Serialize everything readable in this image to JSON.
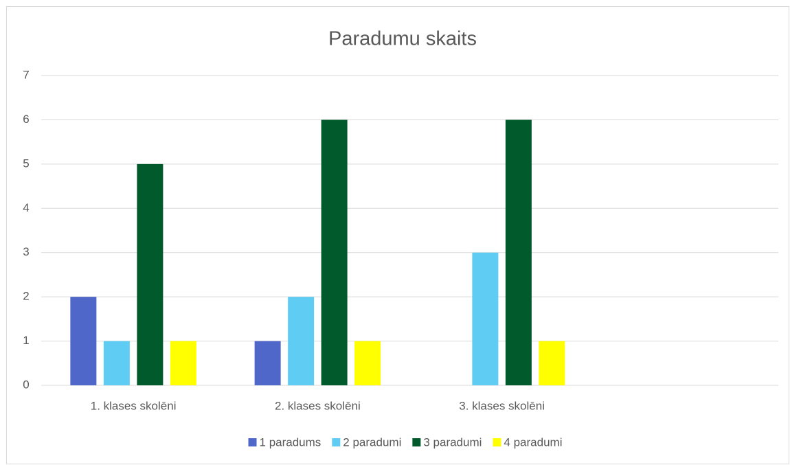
{
  "chart_data": {
    "type": "bar",
    "title": "Paradumu skaits",
    "categories": [
      "1. klases skolēni",
      "2. klases skolēni",
      "3. klases skolēni",
      null
    ],
    "series": [
      {
        "name": "1 paradums",
        "color": "#4e67c8",
        "values": [
          2,
          1,
          0,
          null
        ]
      },
      {
        "name": "2 paradumi",
        "color": "#5fcdf3",
        "values": [
          1,
          2,
          3,
          null
        ]
      },
      {
        "name": "3 paradumi",
        "color": "#005a2b",
        "values": [
          5,
          6,
          6,
          null
        ]
      },
      {
        "name": "4 paradumi",
        "color": "#ffff00",
        "values": [
          1,
          1,
          1,
          null
        ]
      }
    ],
    "ylim": [
      0,
      7
    ],
    "yticks": [
      0,
      1,
      2,
      3,
      4,
      5,
      6,
      7
    ],
    "grid": true,
    "legend": "bottom"
  }
}
